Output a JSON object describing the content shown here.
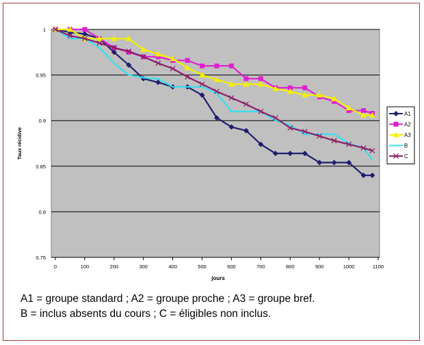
{
  "caption": {
    "line1": "A1 = groupe standard ; A2 = groupe proche ; A3 = groupe bref.",
    "line2": "B = inclus absents du cours ; C = éligibles non inclus."
  },
  "chart_data": {
    "type": "line",
    "xlabel": "jours",
    "ylabel": "Taux récidive",
    "xlim": [
      0,
      1100
    ],
    "ylim": [
      0.75,
      1
    ],
    "x_ticks": [
      0,
      100,
      200,
      300,
      400,
      500,
      600,
      700,
      800,
      900,
      1000,
      1100
    ],
    "y_ticks": [
      0.75,
      0.8,
      0.85,
      0.9,
      0.95,
      1
    ],
    "y_tick_labels": [
      "0.75",
      "0.8",
      "0.85",
      "0.9",
      "0.95",
      "1"
    ],
    "grid": "horizontal",
    "plot_background": "#c0c0c0",
    "legend_position": "right",
    "series": [
      {
        "name": "A1",
        "color": "#1f1f6e",
        "marker": "diamond",
        "x": [
          0,
          50,
          100,
          150,
          200,
          250,
          300,
          350,
          400,
          450,
          500,
          550,
          600,
          650,
          700,
          750,
          800,
          850,
          900,
          950,
          1000,
          1050,
          1080
        ],
        "y": [
          1,
          0.997,
          0.995,
          0.99,
          0.975,
          0.961,
          0.946,
          0.942,
          0.937,
          0.937,
          0.928,
          0.903,
          0.893,
          0.889,
          0.874,
          0.864,
          0.864,
          0.864,
          0.854,
          0.854,
          0.854,
          0.84,
          0.84
        ]
      },
      {
        "name": "A2",
        "color": "#e020d0",
        "marker": "square",
        "x": [
          0,
          50,
          100,
          150,
          200,
          250,
          300,
          350,
          400,
          450,
          500,
          550,
          600,
          650,
          700,
          750,
          800,
          850,
          900,
          950,
          1000,
          1050,
          1080
        ],
        "y": [
          1,
          1,
          1,
          0.99,
          0.98,
          0.975,
          0.97,
          0.97,
          0.966,
          0.966,
          0.96,
          0.96,
          0.96,
          0.946,
          0.946,
          0.936,
          0.936,
          0.936,
          0.926,
          0.921,
          0.911,
          0.911,
          0.908
        ]
      },
      {
        "name": "A3",
        "color": "#f4f000",
        "marker": "triangle",
        "x": [
          0,
          50,
          100,
          150,
          200,
          250,
          300,
          350,
          400,
          450,
          500,
          550,
          600,
          650,
          700,
          750,
          800,
          850,
          900,
          950,
          1000,
          1050,
          1080
        ],
        "y": [
          1,
          1,
          0.99,
          0.99,
          0.99,
          0.99,
          0.978,
          0.973,
          0.968,
          0.958,
          0.95,
          0.945,
          0.94,
          0.94,
          0.94,
          0.935,
          0.932,
          0.928,
          0.928,
          0.924,
          0.914,
          0.906,
          0.906
        ]
      },
      {
        "name": "B",
        "color": "#33e0ef",
        "marker": "none",
        "x": [
          0,
          50,
          100,
          150,
          200,
          250,
          300,
          350,
          400,
          450,
          500,
          550,
          600,
          650,
          700,
          750,
          800,
          850,
          900,
          950,
          1000,
          1050,
          1080
        ],
        "y": [
          1,
          0.99,
          0.99,
          0.98,
          0.963,
          0.95,
          0.947,
          0.946,
          0.937,
          0.937,
          0.937,
          0.93,
          0.91,
          0.91,
          0.91,
          0.9,
          0.895,
          0.885,
          0.885,
          0.885,
          0.875,
          0.87,
          0.857
        ]
      },
      {
        "name": "C",
        "color": "#8b1f6a",
        "marker": "x",
        "x": [
          0,
          50,
          100,
          150,
          200,
          250,
          300,
          350,
          400,
          450,
          500,
          550,
          600,
          650,
          700,
          750,
          800,
          850,
          900,
          950,
          1000,
          1050,
          1080
        ],
        "y": [
          1,
          0.993,
          0.99,
          0.985,
          0.98,
          0.976,
          0.97,
          0.963,
          0.957,
          0.948,
          0.94,
          0.932,
          0.925,
          0.918,
          0.91,
          0.903,
          0.892,
          0.888,
          0.883,
          0.878,
          0.874,
          0.87,
          0.867
        ]
      }
    ]
  }
}
